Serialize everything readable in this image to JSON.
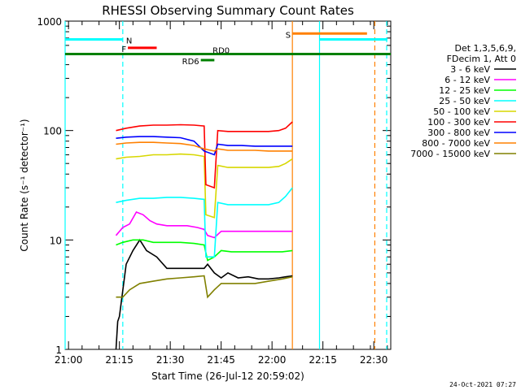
{
  "chart_data": {
    "type": "line",
    "title": "RHESSI Observing Summary Count Rates",
    "xlabel": "Start Time (26-Jul-12 20:59:02)",
    "ylabel": "Count Rate (s⁻¹ detector⁻¹)",
    "yscale": "log",
    "xlim": [
      0,
      96
    ],
    "ylim": [
      1,
      1000
    ],
    "x_ticks": [
      {
        "t": 1,
        "label": "21:00"
      },
      {
        "t": 16,
        "label": "21:15"
      },
      {
        "t": 31,
        "label": "21:30"
      },
      {
        "t": 46,
        "label": "21:45"
      },
      {
        "t": 61,
        "label": "22:00"
      },
      {
        "t": 76,
        "label": "22:15"
      },
      {
        "t": 91,
        "label": "22:30"
      }
    ],
    "y_ticks": [
      {
        "v": 1,
        "label": "1"
      },
      {
        "v": 10,
        "label": "10"
      },
      {
        "v": 100,
        "label": "100"
      },
      {
        "v": 1000,
        "label": "1000"
      }
    ],
    "legend_header": [
      "Det 1,3,5,6,9,",
      "FDecim 1, Att 0"
    ],
    "legend_placement": "right",
    "series": [
      {
        "name": "3 - 6 keV",
        "color": "#000000",
        "points": [
          [
            15,
            1
          ],
          [
            15.5,
            1.8
          ],
          [
            16,
            2
          ],
          [
            18,
            6
          ],
          [
            20,
            8
          ],
          [
            22,
            10
          ],
          [
            24,
            8
          ],
          [
            27,
            7
          ],
          [
            30,
            5.5
          ],
          [
            33,
            5.5
          ],
          [
            36,
            5.5
          ],
          [
            39,
            5.5
          ],
          [
            41,
            5.5
          ],
          [
            42,
            6
          ],
          [
            44,
            5
          ],
          [
            46,
            4.5
          ],
          [
            48,
            5
          ],
          [
            51,
            4.5
          ],
          [
            54,
            4.6
          ],
          [
            57,
            4.4
          ],
          [
            60,
            4.4
          ],
          [
            63,
            4.5
          ],
          [
            65,
            4.6
          ],
          [
            67,
            4.7
          ]
        ]
      },
      {
        "name": "6 - 12 keV",
        "color": "#ff00ff",
        "points": [
          [
            15,
            11
          ],
          [
            17,
            13
          ],
          [
            19,
            14
          ],
          [
            21,
            18
          ],
          [
            23,
            17
          ],
          [
            25,
            15
          ],
          [
            27,
            14
          ],
          [
            30,
            13.5
          ],
          [
            33,
            13.5
          ],
          [
            36,
            13.5
          ],
          [
            39,
            13
          ],
          [
            41,
            12.5
          ],
          [
            42,
            11
          ],
          [
            44,
            10.5
          ],
          [
            46,
            12
          ],
          [
            49,
            12
          ],
          [
            52,
            12
          ],
          [
            56,
            12
          ],
          [
            60,
            12
          ],
          [
            64,
            12
          ],
          [
            67,
            12
          ]
        ]
      },
      {
        "name": "12 - 25 keV",
        "color": "#00ff00",
        "points": [
          [
            15,
            9
          ],
          [
            17,
            9.5
          ],
          [
            20,
            10
          ],
          [
            23,
            10
          ],
          [
            26,
            9.5
          ],
          [
            30,
            9.5
          ],
          [
            34,
            9.5
          ],
          [
            38,
            9.3
          ],
          [
            41,
            9
          ],
          [
            42,
            6.5
          ],
          [
            44,
            7
          ],
          [
            46,
            8
          ],
          [
            49,
            7.8
          ],
          [
            52,
            7.8
          ],
          [
            56,
            7.8
          ],
          [
            60,
            7.8
          ],
          [
            64,
            7.8
          ],
          [
            67,
            8
          ]
        ]
      },
      {
        "name": "25 - 50 keV",
        "color": "#00ffff",
        "points": [
          [
            15,
            22
          ],
          [
            18,
            23
          ],
          [
            22,
            24
          ],
          [
            26,
            24
          ],
          [
            30,
            24.5
          ],
          [
            34,
            24.5
          ],
          [
            38,
            24
          ],
          [
            41,
            23.5
          ],
          [
            41.5,
            7
          ],
          [
            44,
            7
          ],
          [
            45,
            22
          ],
          [
            48,
            21
          ],
          [
            52,
            21
          ],
          [
            56,
            21
          ],
          [
            60,
            21
          ],
          [
            63,
            22
          ],
          [
            65,
            25
          ],
          [
            67,
            30
          ]
        ]
      },
      {
        "name": "50 - 100 keV",
        "color": "#d7d700",
        "points": [
          [
            15,
            55
          ],
          [
            18,
            57
          ],
          [
            22,
            58
          ],
          [
            26,
            60
          ],
          [
            30,
            60
          ],
          [
            34,
            61
          ],
          [
            38,
            60
          ],
          [
            41,
            58
          ],
          [
            41.5,
            17
          ],
          [
            44,
            16
          ],
          [
            45,
            48
          ],
          [
            48,
            46
          ],
          [
            52,
            46
          ],
          [
            56,
            46
          ],
          [
            60,
            46
          ],
          [
            63,
            47
          ],
          [
            65,
            50
          ],
          [
            67,
            55
          ]
        ]
      },
      {
        "name": "100 - 300 keV",
        "color": "#ff0000",
        "points": [
          [
            15,
            100
          ],
          [
            18,
            105
          ],
          [
            22,
            110
          ],
          [
            26,
            112
          ],
          [
            30,
            112
          ],
          [
            34,
            113
          ],
          [
            38,
            112
          ],
          [
            41,
            110
          ],
          [
            41.5,
            32
          ],
          [
            44,
            30
          ],
          [
            45,
            100
          ],
          [
            48,
            98
          ],
          [
            52,
            98
          ],
          [
            56,
            98
          ],
          [
            60,
            98
          ],
          [
            63,
            100
          ],
          [
            65,
            105
          ],
          [
            67,
            120
          ]
        ]
      },
      {
        "name": "300 - 800 keV",
        "color": "#0000ff",
        "points": [
          [
            15,
            85
          ],
          [
            18,
            87
          ],
          [
            22,
            88
          ],
          [
            26,
            88
          ],
          [
            30,
            87
          ],
          [
            34,
            86
          ],
          [
            38,
            80
          ],
          [
            41,
            65
          ],
          [
            44,
            60
          ],
          [
            45,
            75
          ],
          [
            48,
            73
          ],
          [
            52,
            73
          ],
          [
            56,
            72
          ],
          [
            60,
            72
          ],
          [
            64,
            72
          ],
          [
            67,
            72
          ]
        ]
      },
      {
        "name": "800 - 7000 keV",
        "color": "#ff8000",
        "points": [
          [
            15,
            75
          ],
          [
            18,
            77
          ],
          [
            22,
            78
          ],
          [
            26,
            78
          ],
          [
            30,
            77
          ],
          [
            34,
            76
          ],
          [
            38,
            73
          ],
          [
            41,
            68
          ],
          [
            44,
            65
          ],
          [
            45,
            68
          ],
          [
            48,
            66
          ],
          [
            52,
            66
          ],
          [
            56,
            66
          ],
          [
            60,
            65
          ],
          [
            64,
            65
          ],
          [
            67,
            65
          ]
        ]
      },
      {
        "name": "7000 - 15000 keV",
        "color": "#808000",
        "points": [
          [
            15,
            3
          ],
          [
            17,
            3
          ],
          [
            19,
            3.5
          ],
          [
            22,
            4
          ],
          [
            26,
            4.2
          ],
          [
            30,
            4.4
          ],
          [
            34,
            4.5
          ],
          [
            38,
            4.6
          ],
          [
            41,
            4.7
          ],
          [
            42,
            3
          ],
          [
            44,
            3.5
          ],
          [
            46,
            4
          ],
          [
            49,
            4
          ],
          [
            52,
            4
          ],
          [
            56,
            4
          ],
          [
            60,
            4.2
          ],
          [
            64,
            4.4
          ],
          [
            67,
            4.6
          ]
        ]
      }
    ],
    "flags": [
      {
        "label": "N",
        "color": "#00ffff",
        "segments": [
          [
            0,
            17
          ]
        ],
        "level": 680
      },
      {
        "label": "F",
        "color": "#ff0000",
        "segments": [
          [
            18.5,
            27
          ]
        ],
        "level": 570
      },
      {
        "label": "RD0",
        "color": "#008000",
        "segments": [
          [
            0,
            96
          ]
        ],
        "level": 500
      },
      {
        "label": "RD6",
        "color": "#008000",
        "segments": [
          [
            40,
            44
          ]
        ],
        "level": 440
      },
      {
        "label": "S",
        "color": "#ff8000",
        "segments": [
          [
            67,
            89
          ]
        ],
        "level": 770
      },
      {
        "label": "",
        "color": "#00ffff",
        "segments": [
          [
            75,
            95
          ]
        ],
        "level": 680
      }
    ],
    "vlines": [
      {
        "t": 0,
        "color": "#00ffff",
        "style": "solid"
      },
      {
        "t": 17,
        "color": "#00ffff",
        "style": "dashed"
      },
      {
        "t": 67,
        "color": "#ff8000",
        "style": "solid"
      },
      {
        "t": 75,
        "color": "#00ffff",
        "style": "solid"
      },
      {
        "t": 91.3,
        "color": "#ff8000",
        "style": "dashed"
      },
      {
        "t": 94.8,
        "color": "#00ffff",
        "style": "dashed"
      }
    ]
  },
  "timestamp": "24-Oct-2021 07:27"
}
